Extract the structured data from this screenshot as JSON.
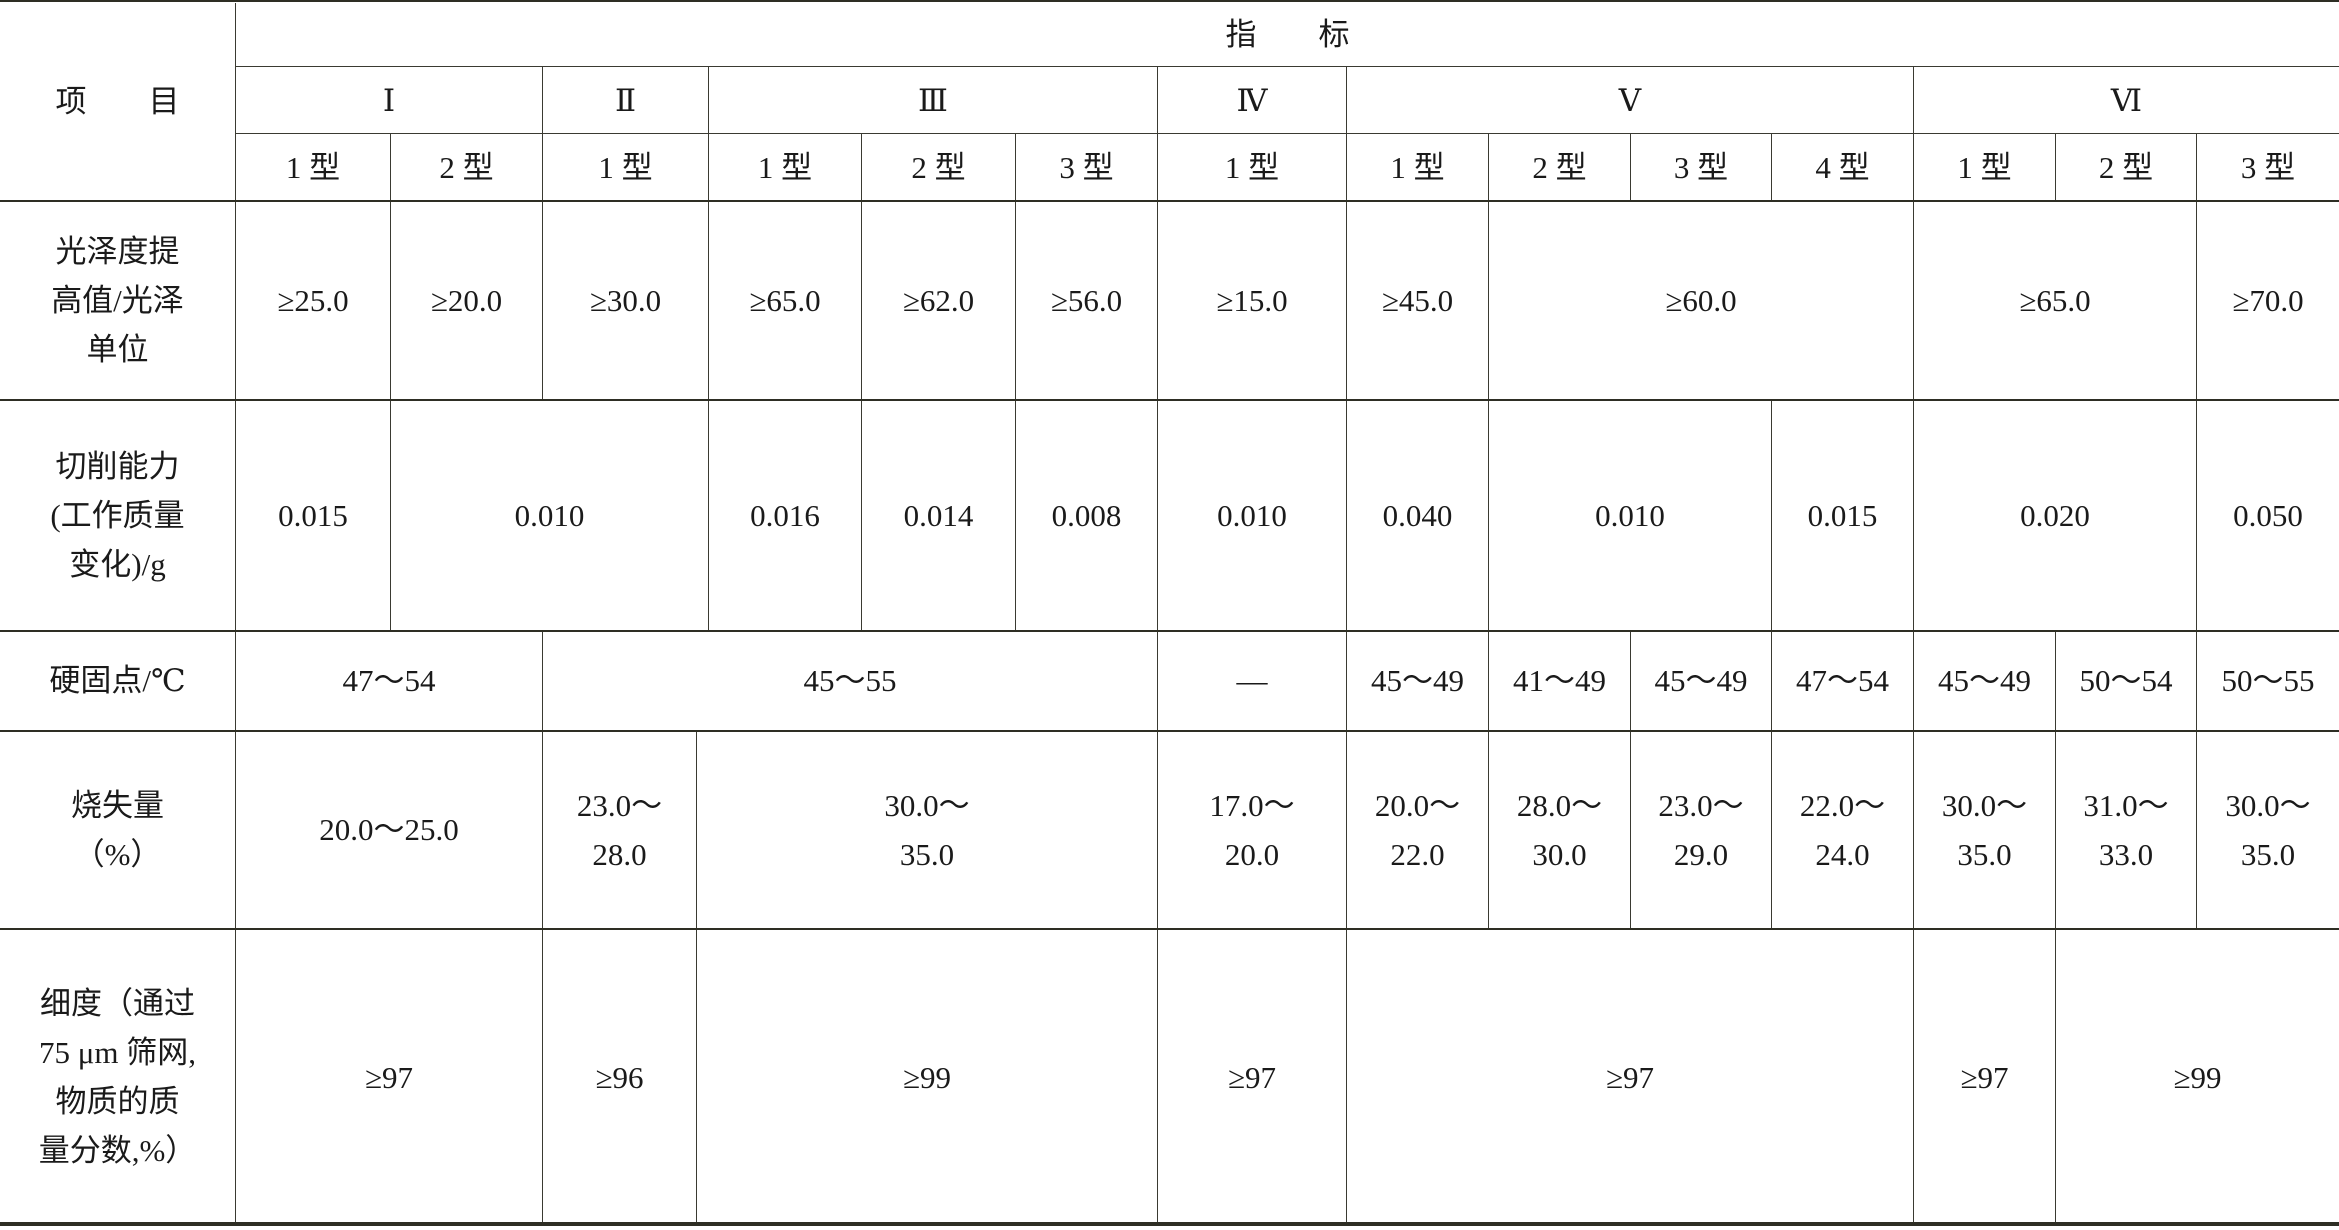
{
  "header": {
    "item_label": "项　　目",
    "indicator_label": "指　　标",
    "grades": [
      "Ⅰ",
      "Ⅱ",
      "Ⅲ",
      "Ⅳ",
      "Ⅴ",
      "Ⅵ"
    ],
    "types": [
      "1 型",
      "2 型",
      "1 型",
      "1 型",
      "2 型",
      "3 型",
      "1 型",
      "1 型",
      "2 型",
      "3 型",
      "4 型",
      "1 型",
      "2 型",
      "3 型"
    ]
  },
  "rows": [
    {
      "label": "光泽度提\n高值/光泽\n单位",
      "cells": [
        "≥25.0",
        "≥20.0",
        "≥30.0",
        "≥65.0",
        "≥62.0",
        "≥56.0",
        "≥15.0",
        "≥45.0",
        "≥60.0",
        "≥65.0",
        "≥70.0"
      ]
    },
    {
      "label": "切削能力\n(工作质量\n变化)/g",
      "cells": [
        "0.015",
        "0.010",
        "0.016",
        "0.014",
        "0.008",
        "0.010",
        "0.040",
        "0.010",
        "0.015",
        "0.020",
        "0.050"
      ]
    },
    {
      "label": "硬固点/℃",
      "cells": [
        "47～54",
        "45～55",
        "—",
        "45～49",
        "41～49",
        "45～49",
        "47～54",
        "45～49",
        "50～54",
        "50～55"
      ]
    },
    {
      "label": "烧失量\n（%）",
      "cells": [
        "20.0～25.0",
        "23.0～\n28.0",
        "30.0～\n35.0",
        "17.0～\n20.0",
        "20.0～\n22.0",
        "28.0～\n30.0",
        "23.0～\n29.0",
        "22.0～\n24.0",
        "30.0～\n35.0",
        "31.0～\n33.0",
        "30.0～\n35.0"
      ]
    },
    {
      "label": "细度（通过\n75 μm 筛网,\n物质的质\n量分数,%）",
      "cells": [
        "≥97",
        "≥96",
        "≥99",
        "≥97",
        "≥97",
        "≥97",
        "≥99"
      ]
    }
  ]
}
